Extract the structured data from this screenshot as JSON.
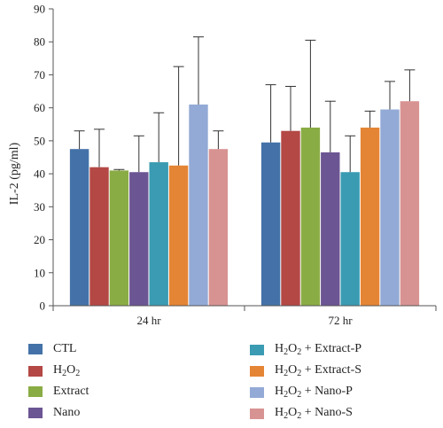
{
  "chart_data": {
    "type": "bar",
    "title": "",
    "xlabel": "",
    "ylabel": "IL-2 (pg/ml)",
    "ylim": [
      0,
      90
    ],
    "yticks": [
      "0",
      "10",
      "20",
      "30",
      "40",
      "50",
      "60",
      "70",
      "80",
      "90"
    ],
    "categories": [
      "24 hr",
      "72 hr"
    ],
    "legend_position": "bottom",
    "series": [
      {
        "name": "CTL",
        "color": "#4472a8",
        "values": [
          47.5,
          49.5
        ],
        "errors": [
          5.5,
          17.5
        ]
      },
      {
        "name": "H2O2",
        "color": "#b34845",
        "values": [
          42.0,
          53.0
        ],
        "errors": [
          11.5,
          13.5
        ]
      },
      {
        "name": "Extract",
        "color": "#8aac45",
        "values": [
          41.0,
          54.0
        ],
        "errors": [
          0.3,
          26.5
        ]
      },
      {
        "name": "Nano",
        "color": "#6c5593",
        "values": [
          40.5,
          46.5
        ],
        "errors": [
          11.0,
          15.5
        ]
      },
      {
        "name": "H2O2 + Extract-P",
        "color": "#3a9bb2",
        "values": [
          43.5,
          40.5
        ],
        "errors": [
          15.0,
          11.0
        ]
      },
      {
        "name": "H2O2 + Extract-S",
        "color": "#e48535",
        "values": [
          42.5,
          54.0
        ],
        "errors": [
          30.0,
          5.0
        ]
      },
      {
        "name": "H2O2 + Nano-P",
        "color": "#93aad6",
        "values": [
          61.0,
          59.5
        ],
        "errors": [
          20.5,
          8.5
        ]
      },
      {
        "name": "H2O2 + Nano-S",
        "color": "#d79392",
        "values": [
          47.5,
          62.0
        ],
        "errors": [
          5.5,
          9.5
        ]
      }
    ]
  },
  "legend": {
    "items": [
      {
        "pre": "CTL",
        "sub": "",
        "post": ""
      },
      {
        "pre": "H",
        "sub": "2",
        "post": "O",
        "sub2": "2",
        "post2": ""
      },
      {
        "pre": "Extract",
        "sub": "",
        "post": ""
      },
      {
        "pre": "Nano",
        "sub": "",
        "post": ""
      },
      {
        "pre": "H",
        "sub": "2",
        "post": "O",
        "sub2": "2",
        "post2": " + Extract-P"
      },
      {
        "pre": "H",
        "sub": "2",
        "post": "O",
        "sub2": "2",
        "post2": " + Extract-S"
      },
      {
        "pre": "H",
        "sub": "2",
        "post": "O",
        "sub2": "2",
        "post2": " + Nano-P"
      },
      {
        "pre": "H",
        "sub": "2",
        "post": "O",
        "sub2": "2",
        "post2": " + Nano-S"
      }
    ]
  }
}
